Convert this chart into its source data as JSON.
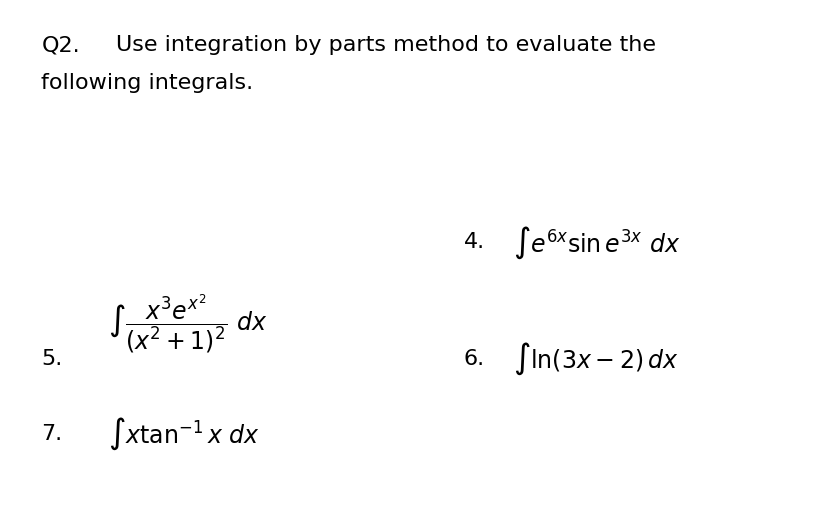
{
  "bg_color": "#ffffff",
  "title_q": "Q2.",
  "title_text": "Use integration by parts method to evaluate the\nfollowing integrals.",
  "item4_label": "4.",
  "item4_expr": "$\\int e^{6x} \\sin e^{3x}\\ dx$",
  "item5_label": "5.",
  "item5_expr": "$\\int \\dfrac{x^3 e^{x^2}}{\\left(x^2+1\\right)^2}\\ dx$",
  "item6_label": "6.",
  "item6_expr": "$\\int \\ln(3x-2)\\, dx$",
  "item7_label": "7.",
  "item7_expr": "$\\int x\\tan^{-1} x\\ dx$",
  "title_fontsize": 16,
  "label_fontsize": 16,
  "expr_fontsize": 16,
  "text_color": "#000000"
}
